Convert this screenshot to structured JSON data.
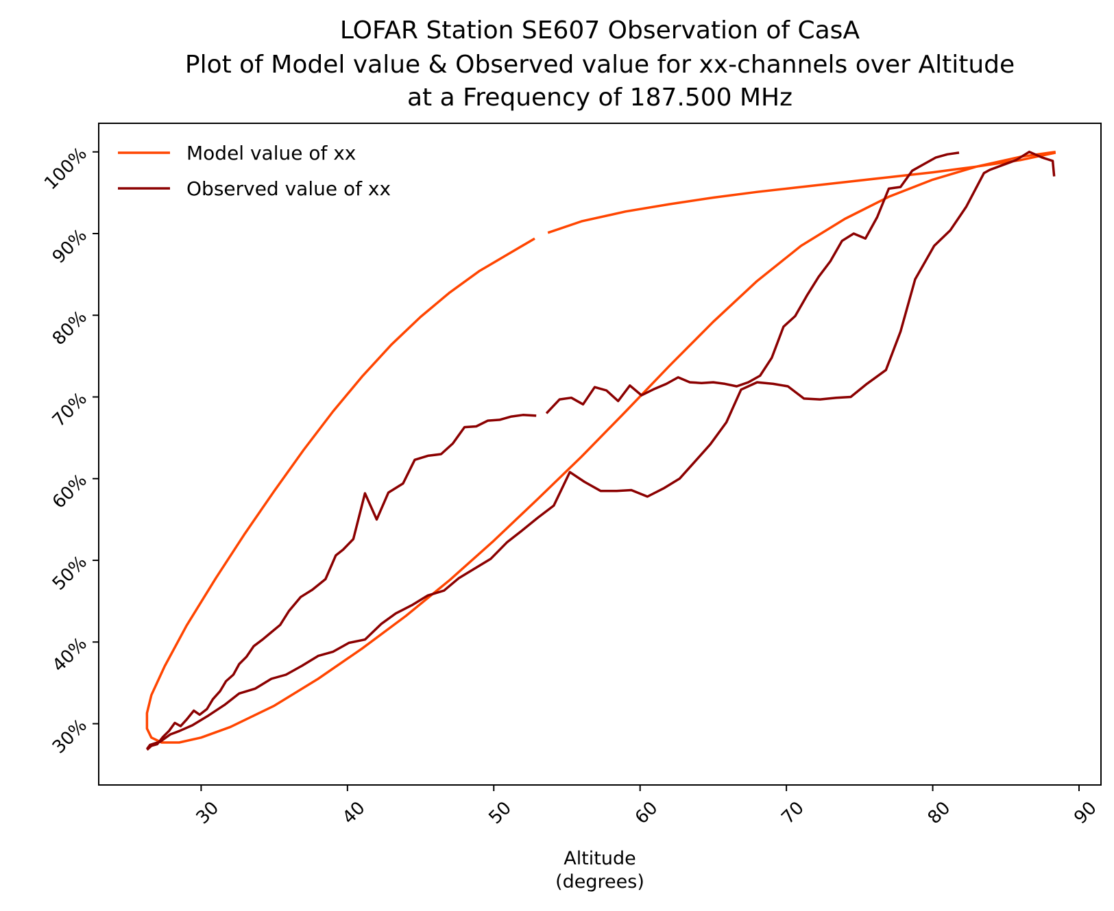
{
  "chart_data": {
    "type": "line",
    "title_lines": [
      "LOFAR Station SE607 Observation of CasA",
      "Plot of Model value & Observed value for xx-channels over Altitude",
      "at a Frequency of 187.500 MHz"
    ],
    "xlabel_lines": [
      "Altitude",
      "(degrees)"
    ],
    "ylabel": "",
    "xlim": [
      23,
      91.5
    ],
    "ylim": [
      22.5,
      103.5
    ],
    "x_ticks": [
      30,
      40,
      50,
      60,
      70,
      80,
      90
    ],
    "x_tick_labels": [
      "30",
      "40",
      "50",
      "60",
      "70",
      "80",
      "90"
    ],
    "y_ticks": [
      30,
      40,
      50,
      60,
      70,
      80,
      90,
      100
    ],
    "y_tick_labels": [
      "30%",
      "40%",
      "50%",
      "60%",
      "70%",
      "80%",
      "90%",
      "100%"
    ],
    "grid": false,
    "legend_position": "top-left",
    "series": [
      {
        "name": "Model value of xx",
        "color": "#ff4500",
        "segments": [
          [
            [
              88.4,
              100
            ],
            [
              86,
              99.4
            ],
            [
              83,
              98.2
            ],
            [
              80,
              96.6
            ],
            [
              77,
              94.5
            ],
            [
              74,
              91.8
            ],
            [
              71,
              88.5
            ],
            [
              68,
              84.2
            ],
            [
              65,
              79.2
            ],
            [
              62,
              73.8
            ],
            [
              59,
              68.2
            ],
            [
              56,
              62.7
            ],
            [
              53,
              57.5
            ],
            [
              50,
              52.4
            ],
            [
              47,
              47.6
            ],
            [
              44,
              43.2
            ],
            [
              41,
              39.2
            ],
            [
              38,
              35.5
            ],
            [
              35,
              32.2
            ],
            [
              32,
              29.6
            ],
            [
              30,
              28.3
            ],
            [
              28.5,
              27.7
            ],
            [
              27.3,
              27.7
            ],
            [
              26.6,
              28.3
            ],
            [
              26.3,
              29.4
            ],
            [
              26.3,
              31.3
            ],
            [
              26.6,
              33.5
            ],
            [
              27.5,
              37
            ],
            [
              29,
              42
            ],
            [
              31,
              47.8
            ],
            [
              33,
              53.3
            ],
            [
              35,
              58.5
            ],
            [
              37,
              63.5
            ],
            [
              39,
              68.2
            ],
            [
              41,
              72.5
            ],
            [
              43,
              76.4
            ],
            [
              45,
              79.8
            ],
            [
              47,
              82.8
            ],
            [
              49,
              85.4
            ],
            [
              51,
              87.5
            ],
            [
              52.8,
              89.4
            ]
          ],
          [
            [
              53.7,
              90.1
            ],
            [
              56,
              91.5
            ],
            [
              59,
              92.7
            ],
            [
              62,
              93.6
            ],
            [
              65,
              94.4
            ],
            [
              68,
              95.1
            ],
            [
              71,
              95.7
            ],
            [
              74,
              96.3
            ],
            [
              77,
              96.9
            ],
            [
              80,
              97.5
            ],
            [
              83,
              98.2
            ],
            [
              86,
              99
            ],
            [
              88.4,
              99.9
            ]
          ]
        ]
      },
      {
        "name": "Observed value of xx",
        "color": "#8b0000",
        "segments": [
          [
            [
              88.3,
              97
            ],
            [
              88.2,
              98.9
            ],
            [
              87.5,
              99.3
            ],
            [
              86.6,
              100
            ],
            [
              85.7,
              99
            ],
            [
              84.8,
              98.4
            ],
            [
              83.9,
              97.8
            ],
            [
              83.5,
              97.4
            ],
            [
              82.3,
              93.3
            ],
            [
              81.2,
              90.4
            ],
            [
              80.1,
              88.5
            ],
            [
              78.8,
              84.4
            ],
            [
              77.8,
              78
            ],
            [
              76.8,
              73.3
            ],
            [
              75.5,
              71.6
            ],
            [
              74.4,
              70
            ],
            [
              73.4,
              69.9
            ],
            [
              72.3,
              69.7
            ],
            [
              71.2,
              69.8
            ],
            [
              70.1,
              71.3
            ],
            [
              69.1,
              71.6
            ],
            [
              68,
              71.8
            ],
            [
              66.9,
              70.9
            ],
            [
              65.9,
              66.9
            ],
            [
              64.8,
              64.2
            ],
            [
              63.7,
              62
            ],
            [
              62.7,
              60
            ],
            [
              61.6,
              58.8
            ],
            [
              60.5,
              57.8
            ],
            [
              59.4,
              58.6
            ],
            [
              58.4,
              58.5
            ],
            [
              57.3,
              58.5
            ],
            [
              56.2,
              59.6
            ],
            [
              55.2,
              60.8
            ],
            [
              54.1,
              56.7
            ],
            [
              53,
              55.2
            ],
            [
              51.9,
              53.6
            ],
            [
              50.9,
              52.2
            ],
            [
              49.8,
              50.2
            ],
            [
              48.7,
              49
            ],
            [
              47.6,
              47.8
            ],
            [
              46.6,
              46.3
            ],
            [
              45.5,
              45.7
            ],
            [
              44.4,
              44.5
            ],
            [
              43.3,
              43.5
            ],
            [
              42.3,
              42.2
            ],
            [
              41.2,
              40.3
            ],
            [
              40.1,
              39.9
            ],
            [
              39,
              38.8
            ],
            [
              38,
              38.3
            ],
            [
              36.9,
              37.1
            ],
            [
              35.8,
              36
            ],
            [
              34.8,
              35.5
            ],
            [
              33.7,
              34.3
            ],
            [
              32.6,
              33.7
            ],
            [
              31.6,
              32.3
            ],
            [
              30.5,
              31
            ],
            [
              29.4,
              29.8
            ],
            [
              28.5,
              29.1
            ],
            [
              27.9,
              28.7
            ],
            [
              27.2,
              27.8
            ],
            [
              26.5,
              27.4
            ],
            [
              26.3,
              26.9
            ]
          ],
          [
            [
              26.3,
              26.8
            ],
            [
              26.6,
              27.3
            ],
            [
              27,
              27.5
            ],
            [
              27.4,
              28.4
            ],
            [
              27.8,
              29.1
            ],
            [
              28.2,
              30.1
            ],
            [
              28.6,
              29.7
            ],
            [
              29,
              30.5
            ],
            [
              29.5,
              31.6
            ],
            [
              29.9,
              31.1
            ],
            [
              30.4,
              31.8
            ],
            [
              30.8,
              33
            ],
            [
              31.3,
              34
            ],
            [
              31.7,
              35.2
            ],
            [
              32.2,
              36
            ],
            [
              32.6,
              37.3
            ],
            [
              33.1,
              38.2
            ],
            [
              33.6,
              39.5
            ],
            [
              34.2,
              40.3
            ],
            [
              34.8,
              41.2
            ],
            [
              35.4,
              42.1
            ],
            [
              36,
              43.8
            ],
            [
              36.8,
              45.5
            ],
            [
              37.6,
              46.4
            ],
            [
              38.5,
              47.7
            ],
            [
              39.2,
              50.6
            ],
            [
              39.7,
              51.3
            ],
            [
              40.4,
              52.6
            ],
            [
              41.2,
              58.2
            ],
            [
              42,
              55
            ],
            [
              42.8,
              58.3
            ],
            [
              43.8,
              59.4
            ],
            [
              44.6,
              62.3
            ],
            [
              45.5,
              62.8
            ],
            [
              46.4,
              63
            ],
            [
              47.2,
              64.3
            ],
            [
              48,
              66.3
            ],
            [
              48.8,
              66.4
            ],
            [
              49.6,
              67.1
            ],
            [
              50.4,
              67.2
            ],
            [
              51.2,
              67.6
            ],
            [
              52,
              67.8
            ],
            [
              52.9,
              67.7
            ]
          ],
          [
            [
              53.6,
              68
            ],
            [
              54.5,
              69.7
            ],
            [
              55.3,
              69.9
            ],
            [
              56.1,
              69.1
            ],
            [
              56.9,
              71.2
            ],
            [
              57.7,
              70.8
            ],
            [
              58.5,
              69.5
            ],
            [
              59.3,
              71.4
            ],
            [
              60.1,
              70.2
            ],
            [
              61,
              71
            ],
            [
              61.8,
              71.6
            ],
            [
              62.6,
              72.4
            ],
            [
              63.4,
              71.8
            ],
            [
              64.2,
              71.7
            ],
            [
              65,
              71.8
            ],
            [
              65.8,
              71.6
            ],
            [
              66.6,
              71.3
            ],
            [
              67.4,
              71.8
            ],
            [
              68.2,
              72.6
            ],
            [
              69,
              74.8
            ],
            [
              69.8,
              78.6
            ],
            [
              70.6,
              79.9
            ],
            [
              71.4,
              82.4
            ],
            [
              72.2,
              84.7
            ],
            [
              73,
              86.6
            ],
            [
              73.8,
              89.1
            ],
            [
              74.6,
              90
            ],
            [
              75.4,
              89.4
            ],
            [
              76.2,
              92
            ],
            [
              77,
              95.5
            ],
            [
              77.8,
              95.7
            ],
            [
              78.6,
              97.7
            ],
            [
              79.4,
              98.5
            ],
            [
              80.2,
              99.3
            ],
            [
              81,
              99.7
            ],
            [
              81.8,
              99.9
            ]
          ]
        ]
      }
    ]
  }
}
